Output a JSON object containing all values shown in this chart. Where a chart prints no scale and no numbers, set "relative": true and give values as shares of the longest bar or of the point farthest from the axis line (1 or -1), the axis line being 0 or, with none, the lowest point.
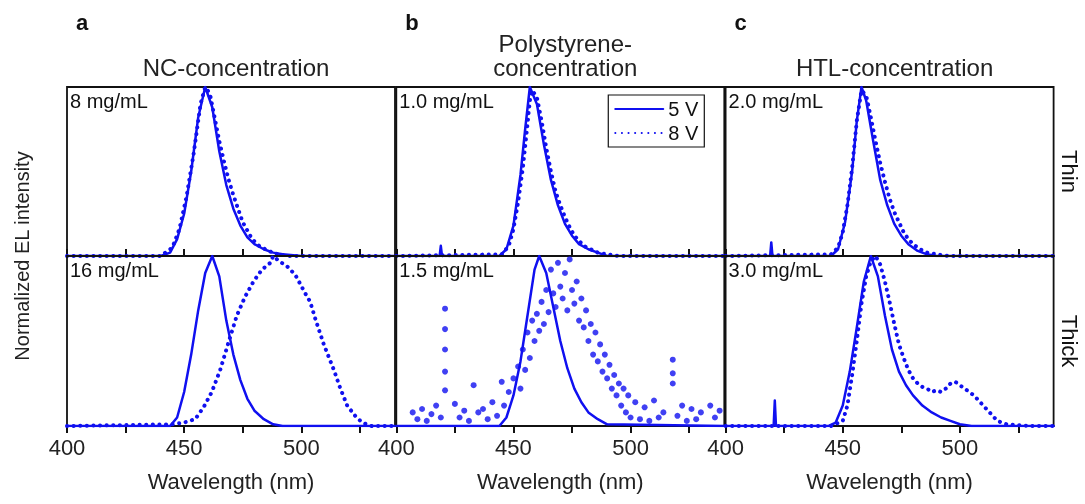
{
  "chart_data": [
    {
      "type": "line",
      "title": "a",
      "subtitle": "NC-concentration",
      "ylabel": "Normalized EL intensity",
      "annotations": [
        "8 mg/mL"
      ],
      "relative": true,
      "xlim": [
        400,
        540
      ],
      "xticks": [
        400,
        {
          "value": 425,
          "label": null
        },
        450,
        {
          "value": 475,
          "label": null
        },
        500,
        {
          "value": 525,
          "label": null
        }
      ],
      "tick_labels": false,
      "series": [
        {
          "color": "#1010f0",
          "marker": "none",
          "line_style": "solid",
          "x": [
            400,
            440,
            444,
            447,
            450,
            453,
            456,
            459,
            462,
            465,
            468,
            471,
            474,
            477,
            480,
            484,
            488,
            492,
            500,
            540
          ],
          "values": [
            0,
            0,
            0.02,
            0.1,
            0.25,
            0.5,
            0.82,
            1,
            0.88,
            0.62,
            0.42,
            0.28,
            0.18,
            0.11,
            0.07,
            0.04,
            0.02,
            0.01,
            0,
            0
          ]
        },
        {
          "color": "#1010f0",
          "marker": "none",
          "line_style": "dotted",
          "x": [
            400,
            440,
            445,
            448,
            451,
            454,
            457,
            459,
            461,
            463,
            465,
            467,
            469,
            471,
            473,
            475,
            477,
            479,
            482,
            486,
            490,
            495,
            540
          ],
          "values": [
            0,
            0,
            0.05,
            0.16,
            0.35,
            0.6,
            0.9,
            1,
            0.96,
            0.82,
            0.68,
            0.56,
            0.45,
            0.36,
            0.28,
            0.2,
            0.15,
            0.1,
            0.06,
            0.03,
            0.01,
            0,
            0
          ]
        }
      ]
    },
    {
      "type": "line",
      "title": "b",
      "subtitle": "Polystyrene-\nconcentration",
      "annotations": [
        "1.0 mg/mL"
      ],
      "relative": true,
      "legend": "top right",
      "xlim": [
        400,
        540
      ],
      "xticks": [
        400,
        {
          "value": 425,
          "label": null
        },
        450,
        {
          "value": 475,
          "label": null
        },
        500,
        {
          "value": 525,
          "label": null
        }
      ],
      "tick_labels": false,
      "series": [
        {
          "name": "5 V",
          "color": "#1010f0",
          "marker": "none",
          "line_style": "solid",
          "x": [
            400,
            418.5,
            419,
            419.5,
            444,
            447,
            450,
            453,
            455,
            457,
            460,
            463,
            466,
            469,
            472,
            475,
            478,
            482,
            486,
            490,
            540
          ],
          "values": [
            0,
            0,
            0.06,
            0,
            0,
            0.04,
            0.18,
            0.48,
            0.75,
            1,
            0.9,
            0.66,
            0.45,
            0.3,
            0.19,
            0.12,
            0.07,
            0.04,
            0.02,
            0,
            0
          ]
        },
        {
          "name": "8 V",
          "color": "#1010f0",
          "marker": "none",
          "line_style": "dotted",
          "x": [
            400,
            445,
            448,
            450,
            452,
            454,
            456,
            457,
            458,
            460,
            462,
            464,
            466,
            468,
            470,
            472,
            474,
            476,
            478,
            480,
            483,
            486,
            490,
            495,
            540
          ],
          "values": [
            0,
            0.01,
            0.06,
            0.16,
            0.32,
            0.52,
            0.78,
            0.92,
            0.98,
            0.94,
            0.8,
            0.64,
            0.5,
            0.38,
            0.3,
            0.23,
            0.17,
            0.12,
            0.09,
            0.06,
            0.04,
            0.02,
            0.01,
            0,
            0
          ]
        }
      ]
    },
    {
      "type": "line",
      "title": "c",
      "subtitle": "HTL-concentration",
      "annotations": [
        "2.0 mg/mL",
        "Thin"
      ],
      "relative": true,
      "xlim": [
        400,
        540
      ],
      "xticks": [
        400,
        {
          "value": 425,
          "label": null
        },
        450,
        {
          "value": 475,
          "label": null
        },
        500,
        {
          "value": 525,
          "label": null
        }
      ],
      "tick_labels": false,
      "series": [
        {
          "color": "#1010f0",
          "marker": "none",
          "line_style": "solid",
          "x": [
            400,
            419,
            419.5,
            420,
            445,
            448,
            451,
            454,
            456,
            458,
            460,
            463,
            466,
            469,
            472,
            475,
            478,
            482,
            486,
            490,
            540
          ],
          "values": [
            0,
            0,
            0.08,
            0,
            0,
            0.04,
            0.2,
            0.5,
            0.8,
            1,
            0.92,
            0.68,
            0.45,
            0.3,
            0.19,
            0.12,
            0.07,
            0.03,
            0.01,
            0,
            0
          ]
        },
        {
          "color": "#1010f0",
          "marker": "none",
          "line_style": "dotted",
          "x": [
            400,
            445,
            448,
            450,
            452,
            454,
            456,
            458,
            460,
            462,
            464,
            466,
            468,
            470,
            472,
            474,
            476,
            478,
            480,
            483,
            486,
            490,
            495,
            540
          ],
          "values": [
            0,
            0.01,
            0.05,
            0.14,
            0.3,
            0.52,
            0.8,
            0.98,
            0.95,
            0.82,
            0.68,
            0.55,
            0.44,
            0.34,
            0.26,
            0.2,
            0.14,
            0.1,
            0.07,
            0.04,
            0.02,
            0.01,
            0,
            0
          ]
        }
      ]
    },
    {
      "type": "line",
      "annotations": [
        "16 mg/mL"
      ],
      "relative": true,
      "xlabel": "Wavelength (nm)",
      "xlim": [
        400,
        540
      ],
      "xticks": [
        400,
        {
          "value": 425,
          "label": null
        },
        450,
        {
          "value": 475,
          "label": null
        },
        500,
        {
          "value": 525,
          "label": null
        }
      ],
      "tick_labels": "x",
      "series": [
        {
          "color": "#1010f0",
          "marker": "none",
          "line_style": "solid",
          "x": [
            400,
            444,
            447,
            450,
            453,
            456,
            459,
            462,
            465,
            468,
            471,
            474,
            477,
            480,
            484,
            488,
            492,
            540
          ],
          "values": [
            0,
            0,
            0.05,
            0.2,
            0.42,
            0.68,
            0.9,
            1,
            0.88,
            0.62,
            0.42,
            0.27,
            0.16,
            0.09,
            0.04,
            0.01,
            0,
            0
          ]
        },
        {
          "color": "#1010f0",
          "marker": "none",
          "line_style": "dotted",
          "x": [
            400,
            445,
            450,
            454.7,
            458.3,
            461.8,
            465.4,
            468.9,
            472.5,
            476,
            479.6,
            483.2,
            486.8,
            488,
            490.5,
            493.9,
            497.4,
            501.7,
            503.8,
            506,
            509.6,
            513.9,
            516.7,
            519.6,
            523,
            526,
            530,
            540
          ],
          "values": [
            0,
            0.01,
            0.02,
            0.04,
            0.11,
            0.2,
            0.33,
            0.49,
            0.65,
            0.76,
            0.85,
            0.92,
            0.96,
            1,
            0.97,
            0.94,
            0.89,
            0.78,
            0.73,
            0.63,
            0.48,
            0.33,
            0.22,
            0.12,
            0.06,
            0.02,
            0,
            0
          ]
        }
      ]
    },
    {
      "type": "line",
      "annotations": [
        "1.5 mg/mL"
      ],
      "relative": true,
      "xlabel": "Wavelength (nm)",
      "xlim": [
        400,
        540
      ],
      "xticks": [
        400,
        {
          "value": 425,
          "label": null
        },
        450,
        {
          "value": 475,
          "label": null
        },
        500,
        {
          "value": 525,
          "label": null
        }
      ],
      "tick_labels": "x",
      "series": [
        {
          "color": "#1010f0",
          "marker": "none",
          "line_style": "solid",
          "x": [
            400,
            444,
            447,
            450,
            453,
            456,
            459,
            461,
            464,
            467,
            470,
            473,
            476,
            479,
            482,
            486,
            490,
            540
          ],
          "values": [
            0,
            0,
            0.05,
            0.18,
            0.38,
            0.65,
            0.92,
            1,
            0.9,
            0.7,
            0.5,
            0.34,
            0.22,
            0.14,
            0.08,
            0.04,
            0.01,
            0
          ]
        },
        {
          "type": "scatter",
          "color": "#1010f0",
          "marker": "circle",
          "x": [
            407,
            409,
            411,
            413,
            415,
            417,
            419,
            420.8,
            420.8,
            420.8,
            420.8,
            420.8,
            425,
            427,
            429,
            431,
            433,
            435,
            437,
            439,
            441,
            443,
            445,
            446,
            448,
            450,
            452,
            453,
            454,
            455,
            456,
            457,
            458,
            459,
            460,
            461,
            462,
            463,
            464,
            465,
            466,
            467,
            468,
            469,
            470,
            471,
            472,
            473,
            474,
            475,
            476,
            477,
            478,
            479,
            480,
            481,
            482,
            483,
            484,
            485,
            486,
            487,
            488,
            489,
            490,
            491,
            492,
            493,
            494,
            495,
            496,
            497,
            498,
            499,
            500,
            502,
            504,
            506,
            508,
            510,
            512,
            514,
            518,
            518,
            518,
            520,
            522,
            524,
            526,
            528,
            530,
            534,
            536,
            538
          ],
          "values": [
            0.08,
            0.04,
            0.1,
            0.03,
            0.07,
            0.12,
            0.05,
            0.69,
            0.57,
            0.45,
            0.32,
            0.21,
            0.13,
            0.05,
            0.09,
            0.03,
            0.24,
            0.08,
            0.1,
            0.04,
            0.14,
            0.06,
            0.26,
            0.12,
            0.2,
            0.28,
            0.35,
            0.22,
            0.45,
            0.33,
            0.55,
            0.4,
            0.62,
            0.5,
            0.66,
            0.56,
            0.73,
            0.6,
            0.8,
            0.67,
            0.92,
            0.78,
            0.7,
            0.96,
            0.82,
            0.75,
            0.9,
            0.68,
            0.98,
            0.8,
            0.72,
            0.85,
            0.62,
            0.75,
            0.58,
            0.68,
            0.5,
            0.6,
            0.42,
            0.55,
            0.38,
            0.48,
            0.32,
            0.42,
            0.28,
            0.36,
            0.22,
            0.3,
            0.18,
            0.25,
            0.12,
            0.22,
            0.08,
            0.18,
            0.05,
            0.14,
            0.04,
            0.11,
            0.03,
            0.15,
            0.05,
            0.08,
            0.39,
            0.31,
            0.25,
            0.06,
            0.12,
            0.03,
            0.1,
            0.04,
            0.08,
            0.12,
            0.05,
            0.09
          ]
        }
      ]
    },
    {
      "type": "line",
      "annotations": [
        "3.0 mg/mL",
        "Thick"
      ],
      "relative": true,
      "xlabel": "Wavelength (nm)",
      "xlim": [
        400,
        540
      ],
      "xticks": [
        400,
        {
          "value": 425,
          "label": null
        },
        450,
        {
          "value": 475,
          "label": null
        },
        500,
        {
          "value": 525,
          "label": null
        }
      ],
      "tick_labels": "x",
      "series": [
        {
          "color": "#1010f0",
          "marker": "none",
          "line_style": "solid",
          "x": [
            400,
            420.5,
            421,
            421.5,
            444,
            447,
            450,
            453,
            456,
            459,
            462,
            465,
            468,
            471,
            474,
            477,
            480,
            484,
            488,
            492,
            496,
            500,
            505,
            540
          ],
          "values": [
            0,
            0,
            0.15,
            0,
            0,
            0.02,
            0.12,
            0.32,
            0.58,
            0.85,
            1,
            0.88,
            0.65,
            0.45,
            0.32,
            0.24,
            0.18,
            0.12,
            0.08,
            0.05,
            0.03,
            0.01,
            0,
            0
          ]
        },
        {
          "color": "#1010f0",
          "marker": "none",
          "line_style": "dotted",
          "x": [
            400,
            445,
            450,
            452,
            454,
            456,
            458,
            460,
            462,
            464,
            466,
            468,
            470,
            472,
            474,
            476,
            478,
            480,
            482,
            484,
            486,
            488,
            490,
            492,
            494,
            496,
            498,
            500,
            502,
            504,
            506,
            508,
            510,
            512,
            514,
            516,
            520,
            530,
            540
          ],
          "values": [
            0,
            0,
            0.03,
            0.12,
            0.3,
            0.5,
            0.72,
            0.88,
            0.97,
            1,
            0.95,
            0.85,
            0.73,
            0.6,
            0.48,
            0.4,
            0.33,
            0.28,
            0.25,
            0.23,
            0.22,
            0.2,
            0.21,
            0.2,
            0.22,
            0.25,
            0.26,
            0.24,
            0.22,
            0.2,
            0.18,
            0.15,
            0.12,
            0.09,
            0.06,
            0.03,
            0.01,
            0,
            0
          ]
        }
      ]
    }
  ]
}
